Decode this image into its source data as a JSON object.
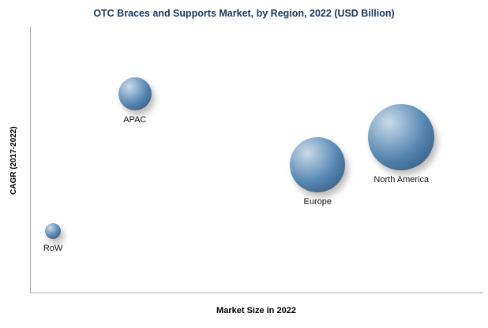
{
  "chart": {
    "title": "OTC Braces and Supports Market, by Region, 2022 (USD Billion)",
    "xlabel": "Market Size in 2022",
    "ylabel": "CAGR (2017-2022)"
  },
  "colors": {
    "title": "#17375E",
    "axis": "#a6a6a6",
    "bubble_highlight": "#c9dbea",
    "bubble_mid": "#5585b0",
    "bubble_dark": "#2e5478",
    "label_text": "#111111"
  },
  "chart_data": {
    "type": "scatter",
    "title": "OTC Braces and Supports Market, by Region, 2022 (USD Billion)",
    "xlabel": "Market Size in 2022",
    "ylabel": "CAGR (2017-2022)",
    "x_axis": {
      "range": [
        0,
        1
      ],
      "tick_labels": "none"
    },
    "y_axis": {
      "range": [
        0,
        1
      ],
      "tick_labels": "none"
    },
    "points": [
      {
        "label": "RoW",
        "x": 0.049,
        "y": 0.232,
        "size": 10
      },
      {
        "label": "APAC",
        "x": 0.23,
        "y": 0.747,
        "size": 21
      },
      {
        "label": "Europe",
        "x": 0.634,
        "y": 0.482,
        "size": 35
      },
      {
        "label": "North America",
        "x": 0.819,
        "y": 0.586,
        "size": 42
      }
    ]
  }
}
